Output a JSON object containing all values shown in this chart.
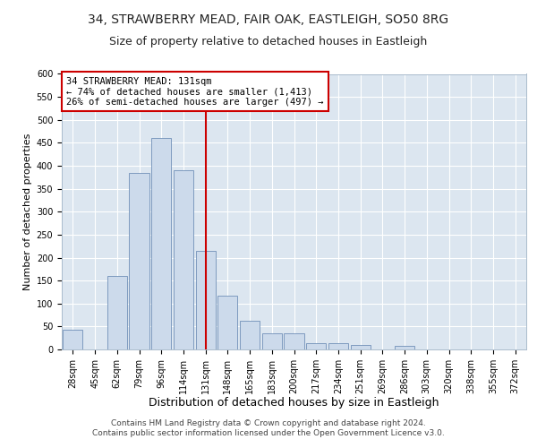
{
  "title1": "34, STRAWBERRY MEAD, FAIR OAK, EASTLEIGH, SO50 8RG",
  "title2": "Size of property relative to detached houses in Eastleigh",
  "xlabel": "Distribution of detached houses by size in Eastleigh",
  "ylabel": "Number of detached properties",
  "categories": [
    "28sqm",
    "45sqm",
    "62sqm",
    "79sqm",
    "96sqm",
    "114sqm",
    "131sqm",
    "148sqm",
    "165sqm",
    "183sqm",
    "200sqm",
    "217sqm",
    "234sqm",
    "251sqm",
    "269sqm",
    "286sqm",
    "303sqm",
    "320sqm",
    "338sqm",
    "355sqm",
    "372sqm"
  ],
  "values": [
    42,
    0,
    160,
    385,
    460,
    390,
    215,
    118,
    62,
    35,
    35,
    14,
    14,
    10,
    0,
    8,
    0,
    0,
    0,
    0,
    0
  ],
  "highlight_index": 6,
  "bar_color": "#ccdaeb",
  "bar_edge_color": "#7090b8",
  "highlight_line_color": "#cc0000",
  "annotation_text": "34 STRAWBERRY MEAD: 131sqm\n← 74% of detached houses are smaller (1,413)\n26% of semi-detached houses are larger (497) →",
  "annotation_box_facecolor": "#ffffff",
  "annotation_box_edgecolor": "#cc0000",
  "background_color": "#dce6f0",
  "ylim": [
    0,
    600
  ],
  "yticks": [
    0,
    50,
    100,
    150,
    200,
    250,
    300,
    350,
    400,
    450,
    500,
    550,
    600
  ],
  "footer1": "Contains HM Land Registry data © Crown copyright and database right 2024.",
  "footer2": "Contains public sector information licensed under the Open Government Licence v3.0.",
  "title1_fontsize": 10,
  "title2_fontsize": 9,
  "xlabel_fontsize": 9,
  "ylabel_fontsize": 8,
  "tick_fontsize": 7,
  "annotation_fontsize": 7.5,
  "footer_fontsize": 6.5
}
